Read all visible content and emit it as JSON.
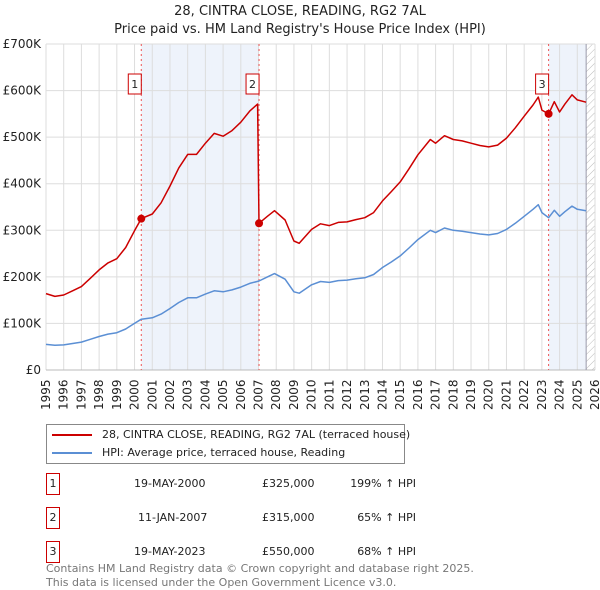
{
  "chart_data": {
    "type": "line",
    "title": "28, CINTRA CLOSE, READING, RG2 7AL",
    "subtitle": "Price paid vs. HM Land Registry's House Price Index (HPI)",
    "xlim": [
      1995,
      2026
    ],
    "ylim": [
      0,
      700000
    ],
    "y_ticks": [
      {
        "v": 0,
        "label": "£0"
      },
      {
        "v": 100000,
        "label": "£100K"
      },
      {
        "v": 200000,
        "label": "£200K"
      },
      {
        "v": 300000,
        "label": "£300K"
      },
      {
        "v": 400000,
        "label": "£400K"
      },
      {
        "v": 500000,
        "label": "£500K"
      },
      {
        "v": 600000,
        "label": "£600K"
      },
      {
        "v": 700000,
        "label": "£700K"
      }
    ],
    "x_ticks": [
      "1995",
      "1996",
      "1997",
      "1998",
      "1999",
      "2000",
      "2001",
      "2002",
      "2003",
      "2004",
      "2005",
      "2006",
      "2007",
      "2008",
      "2009",
      "2010",
      "2011",
      "2012",
      "2013",
      "2014",
      "2015",
      "2016",
      "2017",
      "2018",
      "2019",
      "2020",
      "2021",
      "2022",
      "2023",
      "2024",
      "2025",
      "2026"
    ],
    "grid": true,
    "shaded_ranges": [
      [
        2000.38,
        2007.03
      ],
      [
        2023.38,
        2025.5
      ]
    ],
    "forecast_hatch_from": 2025.5,
    "series": [
      {
        "name": "28, CINTRA CLOSE, READING, RG2 7AL (terraced house)",
        "color": "#cc0000",
        "x": [
          1995,
          1995.5,
          1996,
          1996.5,
          1997,
          1997.5,
          1998,
          1998.5,
          1999,
          1999.5,
          2000,
          2000.38,
          2001,
          2001.5,
          2002,
          2002.5,
          2003,
          2003.5,
          2004,
          2004.5,
          2005,
          2005.5,
          2006,
          2006.5,
          2006.95,
          2007.03,
          2007.5,
          2007.9,
          2008.5,
          2009,
          2009.3,
          2010,
          2010.5,
          2011,
          2011.5,
          2012,
          2012.5,
          2013,
          2013.5,
          2014,
          2014.5,
          2015,
          2015.5,
          2016,
          2016.7,
          2017,
          2017.5,
          2018,
          2018.5,
          2019,
          2019.5,
          2020,
          2020.5,
          2021,
          2021.5,
          2022,
          2022.5,
          2022.8,
          2023,
          2023.38,
          2023.7,
          2024,
          2024.3,
          2024.7,
          2025,
          2025.5
        ],
        "y": [
          164,
          158,
          161,
          170,
          179,
          197,
          215,
          230,
          239,
          263,
          299,
          325,
          335,
          359,
          395,
          434,
          463,
          463,
          487,
          508,
          502,
          514,
          532,
          556,
          571,
          315,
          330,
          342,
          322,
          277,
          272,
          302,
          314,
          310,
          317,
          318,
          323,
          327,
          338,
          363,
          383,
          404,
          432,
          462,
          495,
          487,
          503,
          495,
          492,
          487,
          482,
          479,
          483,
          498,
          520,
          545,
          569,
          586,
          558,
          550,
          576,
          554,
          571,
          591,
          580,
          575
        ]
      },
      {
        "name": "HPI: Average price, terraced house, Reading",
        "color": "#5b8fd4",
        "x": [
          1995,
          1995.5,
          1996,
          1996.5,
          1997,
          1997.5,
          1998,
          1998.5,
          1999,
          1999.5,
          2000,
          2000.38,
          2001,
          2001.5,
          2002,
          2002.5,
          2003,
          2003.5,
          2004,
          2004.5,
          2005,
          2005.5,
          2006,
          2006.5,
          2007.03,
          2007.5,
          2007.9,
          2008.5,
          2009,
          2009.3,
          2010,
          2010.5,
          2011,
          2011.5,
          2012,
          2012.5,
          2013,
          2013.5,
          2014,
          2014.5,
          2015,
          2015.5,
          2016,
          2016.7,
          2017,
          2017.5,
          2018,
          2018.5,
          2019,
          2019.5,
          2020,
          2020.5,
          2021,
          2021.5,
          2022,
          2022.5,
          2022.8,
          2023,
          2023.38,
          2023.7,
          2024,
          2024.3,
          2024.7,
          2025,
          2025.5
        ],
        "y": [
          55,
          53,
          54,
          57,
          60,
          66,
          72,
          77,
          80,
          88,
          100,
          109,
          112,
          120,
          132,
          145,
          155,
          155,
          163,
          170,
          168,
          172,
          178,
          186,
          191,
          200,
          207,
          195,
          168,
          165,
          183,
          190,
          188,
          192,
          193,
          196,
          198,
          205,
          220,
          232,
          245,
          262,
          280,
          300,
          295,
          305,
          300,
          298,
          295,
          292,
          290,
          293,
          302,
          315,
          330,
          345,
          355,
          338,
          327,
          343,
          330,
          340,
          352,
          345,
          342
        ]
      }
    ],
    "y_unit": "thousands GBP",
    "sales": [
      {
        "num": "1",
        "x": 2000.38,
        "value": 325,
        "date": "19-MAY-2000",
        "price": "£325,000",
        "hpi": "199% ↑ HPI"
      },
      {
        "num": "2",
        "x": 2007.03,
        "value": 315,
        "date": "11-JAN-2007",
        "price": "£315,000",
        "hpi": "65% ↑ HPI"
      },
      {
        "num": "3",
        "x": 2023.38,
        "value": 550,
        "date": "19-MAY-2023",
        "price": "£550,000",
        "hpi": "68% ↑ HPI"
      }
    ],
    "legend": {
      "placement": "below",
      "entries": [
        "28, CINTRA CLOSE, READING, RG2 7AL (terraced house)",
        "HPI: Average price, terraced house, Reading"
      ]
    }
  },
  "footer": {
    "line1": "Contains HM Land Registry data © Crown copyright and database right 2025.",
    "line2": "This data is licensed under the Open Government Licence v3.0."
  }
}
